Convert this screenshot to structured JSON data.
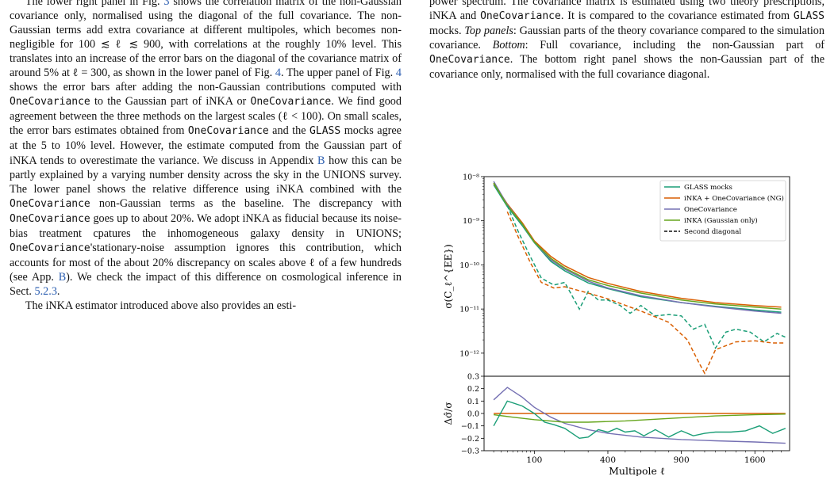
{
  "left_column": {
    "paragraph1": [
      {
        "t": "The lower right panel in Fig. "
      },
      {
        "t": "3",
        "ref": true
      },
      {
        "t": " shows the correlation matrix of the non-Gaussian covariance only, normalised using the diagonal of the full covariance. The non-Gaussian terms add extra covariance at different multipoles, which becomes non-negligible for 100 ≲ ℓ ≲ 900, with correlations at the roughly 10% level. This translates into an increase of the error bars on the diagonal of the covariance matrix of around 5% at ℓ = 300, as shown in the lower panel of Fig. "
      },
      {
        "t": "4",
        "ref": true
      },
      {
        "t": ". The upper panel of Fig. "
      },
      {
        "t": "4",
        "ref": true
      },
      {
        "t": " shows the error bars after adding the non-Gaussian contributions computed with "
      },
      {
        "t": "OneCovariance",
        "mono": true
      },
      {
        "t": " to the Gaussian part of iNKA or "
      },
      {
        "t": "OneCovariance",
        "mono": true
      },
      {
        "t": ". We find good agreement between the three methods on the largest scales (ℓ < 100). On small scales, the error bars estimates obtained from "
      },
      {
        "t": "OneCovariance",
        "mono": true
      },
      {
        "t": " and the "
      },
      {
        "t": "GLASS",
        "mono": true
      },
      {
        "t": " mocks agree at the 5 to 10% level. However, the estimate computed from the Gaussian part of iNKA tends to overestimate the variance. We discuss in Appendix "
      },
      {
        "t": "B",
        "ref": true
      },
      {
        "t": " how this can be partly explained by a varying number density across the sky in the UNIONS survey. The lower panel shows the relative difference using iNKA combined with the "
      },
      {
        "t": "OneCovariance",
        "mono": true
      },
      {
        "t": " non-Gaussian terms as the baseline. The discrepancy with "
      },
      {
        "t": "OneCovariance",
        "mono": true
      },
      {
        "t": " goes up to about 20%. We adopt iNKA as fiducial because its noise-bias treatment cpatures the inhomogeneous galaxy density in UNIONS; "
      },
      {
        "t": "OneCovariance",
        "mono": true
      },
      {
        "t": "'stationary-noise assumption ignores this contribution, which accounts for most of the about 20% discrepancy on scales above ℓ of a few hundreds (see App. "
      },
      {
        "t": "B",
        "ref": true
      },
      {
        "t": "). We check the impact of this difference on cosmological inference in Sect. "
      },
      {
        "t": "5.2.3",
        "ref": true
      },
      {
        "t": "."
      }
    ],
    "paragraph2": [
      {
        "t": "The iNKA estimator introduced above also provides an esti-"
      }
    ]
  },
  "right_column": {
    "caption": [
      {
        "t": "power spectrum. The covariance matrix is estimated using two theory prescriptions, iNKA and "
      },
      {
        "t": "OneCovariance",
        "mono": true
      },
      {
        "t": ". It is compared to the covariance estimated from "
      },
      {
        "t": "GLASS",
        "mono": true
      },
      {
        "t": " mocks. "
      },
      {
        "t": "Top panels",
        "it": true
      },
      {
        "t": ": Gaussian parts of the theory covariance compared to the simulation covariance. "
      },
      {
        "t": "Bottom",
        "it": true
      },
      {
        "t": ": Full covariance, including the non-Gaussian part of "
      },
      {
        "t": "OneCovariance",
        "mono": true
      },
      {
        "t": ". The bottom right panel shows the non-Gaussian part of the covariance only, normalised with the full covariance diagonal."
      }
    ]
  },
  "chart_data": {
    "type": "line",
    "xscale": "sqrt",
    "xlabel": "Multipole ℓ",
    "xticks": [
      100,
      400,
      900,
      1600
    ],
    "xlim": [
      10,
      2000
    ],
    "top": {
      "yscale": "log",
      "ylabel": "σ(C_ℓ^{EE})",
      "ylim": [
        3e-13,
        1e-08
      ],
      "yticks": [
        {
          "value": 1e-08,
          "label": "10⁻⁸"
        },
        {
          "value": 1e-09,
          "label": "10⁻⁹"
        },
        {
          "value": 1e-10,
          "label": "10⁻¹⁰"
        },
        {
          "value": 1e-11,
          "label": "10⁻¹¹"
        },
        {
          "value": 1e-12,
          "label": "10⁻¹²"
        }
      ],
      "legend_position": "top-right",
      "series": [
        {
          "name": "GLASS mocks",
          "color": "#1b9e77",
          "style": "solid",
          "x": [
            20,
            40,
            70,
            100,
            150,
            200,
            300,
            400,
            600,
            900,
            1200,
            1600,
            1900
          ],
          "y": [
            6.5e-09,
            2.1e-09,
            7.7e-10,
            3.2e-10,
            1.2e-10,
            7.3e-11,
            3.9e-11,
            2.9e-11,
            1.9e-11,
            1.4e-11,
            1.15e-11,
            9.5e-12,
            8.5e-12
          ]
        },
        {
          "name": "iNKA + OneCovariance (NG)",
          "color": "#d95f02",
          "style": "solid",
          "x": [
            20,
            40,
            70,
            100,
            150,
            200,
            300,
            400,
            600,
            900,
            1200,
            1600,
            1900
          ],
          "y": [
            7e-09,
            2.4e-09,
            9e-10,
            3.5e-10,
            1.55e-10,
            9.5e-11,
            5.2e-11,
            3.8e-11,
            2.5e-11,
            1.75e-11,
            1.4e-11,
            1.2e-11,
            1.1e-11
          ]
        },
        {
          "name": "OneCovariance",
          "color": "#7570b3",
          "style": "solid",
          "x": [
            20,
            40,
            70,
            100,
            150,
            200,
            300,
            400,
            600,
            900,
            1200,
            1600,
            1900
          ],
          "y": [
            7.8e-09,
            2.3e-09,
            8.3e-10,
            3.3e-10,
            1.3e-10,
            8e-11,
            4.3e-11,
            3e-11,
            2e-11,
            1.4e-11,
            1.12e-11,
            9e-12,
            8e-12
          ]
        },
        {
          "name": "iNKA (Gaussian only)",
          "color": "#66a61e",
          "style": "solid",
          "x": [
            20,
            40,
            70,
            100,
            150,
            200,
            300,
            400,
            600,
            900,
            1200,
            1600,
            1900
          ],
          "y": [
            7.2e-09,
            2.2e-09,
            8.4e-10,
            3.3e-10,
            1.4e-10,
            8.5e-11,
            4.6e-11,
            3.4e-11,
            2.3e-11,
            1.6e-11,
            1.3e-11,
            1.1e-11,
            1e-11
          ]
        },
        {
          "name": "Second diagonal",
          "color": "#111111",
          "style": "dashed",
          "x": [],
          "y": []
        },
        {
          "name": "",
          "color": "#1b9e77",
          "style": "dashed",
          "x": [
            40,
            60,
            90,
            120,
            160,
            200,
            260,
            300,
            350,
            400,
            470,
            530,
            600,
            700,
            800,
            900,
            1000,
            1100,
            1200,
            1300,
            1400,
            1550,
            1700,
            1850,
            1950
          ],
          "y": [
            2.2e-09,
            6e-10,
            1.5e-10,
            5e-11,
            3.5e-11,
            4e-11,
            1e-11,
            2.5e-11,
            1.6e-11,
            1.6e-11,
            1.2e-11,
            8e-12,
            1.2e-11,
            7e-12,
            7.5e-12,
            7e-12,
            3.5e-12,
            4.5e-12,
            1.3e-12,
            3e-12,
            3.5e-12,
            3e-12,
            1.8e-12,
            2.8e-12,
            2.3e-12
          ]
        },
        {
          "name": "",
          "color": "#d95f02",
          "style": "dashed",
          "x": [
            40,
            60,
            90,
            120,
            160,
            200,
            300,
            400,
            600,
            800,
            950,
            1050,
            1100,
            1200,
            1400,
            1600,
            1800,
            1950
          ],
          "y": [
            1.6e-09,
            4.5e-10,
            1.1e-10,
            4e-11,
            3e-11,
            3.2e-11,
            2.3e-11,
            1.7e-11,
            9e-12,
            5e-12,
            2e-12,
            6e-13,
            3.5e-13,
            1.2e-12,
            1.8e-12,
            1.9e-12,
            1.7e-12,
            1.7e-12
          ]
        }
      ]
    },
    "bottom": {
      "ylabel": "Δσ̂/σ",
      "ylim": [
        -0.3,
        0.3
      ],
      "yticks": [
        "0.3",
        "0.2",
        "0.1",
        "0.0",
        "−0.1",
        "−0.2",
        "−0.3"
      ],
      "series": [
        {
          "color": "#d95f02",
          "x": [
            20,
            1950
          ],
          "y": [
            0,
            0
          ]
        },
        {
          "color": "#7570b3",
          "x": [
            20,
            40,
            70,
            100,
            150,
            200,
            300,
            400,
            600,
            900,
            1200,
            1600,
            1950
          ],
          "y": [
            0.11,
            0.21,
            0.13,
            0.05,
            -0.03,
            -0.08,
            -0.13,
            -0.16,
            -0.19,
            -0.21,
            -0.22,
            -0.23,
            -0.24
          ]
        },
        {
          "color": "#66a61e",
          "x": [
            20,
            50,
            100,
            200,
            300,
            500,
            800,
            1200,
            1600,
            1950
          ],
          "y": [
            -0.01,
            -0.03,
            -0.05,
            -0.07,
            -0.07,
            -0.06,
            -0.04,
            -0.02,
            -0.01,
            -0.005
          ]
        },
        {
          "color": "#1b9e77",
          "x": [
            20,
            40,
            70,
            100,
            130,
            160,
            200,
            260,
            300,
            350,
            400,
            450,
            500,
            560,
            620,
            700,
            800,
            900,
            1000,
            1100,
            1200,
            1350,
            1500,
            1650,
            1800,
            1950
          ],
          "y": [
            -0.1,
            0.1,
            0.06,
            0.0,
            -0.07,
            -0.09,
            -0.12,
            -0.2,
            -0.19,
            -0.13,
            -0.15,
            -0.12,
            -0.15,
            -0.14,
            -0.18,
            -0.13,
            -0.19,
            -0.14,
            -0.18,
            -0.16,
            -0.15,
            -0.15,
            -0.14,
            -0.1,
            -0.16,
            -0.12
          ]
        }
      ]
    }
  }
}
